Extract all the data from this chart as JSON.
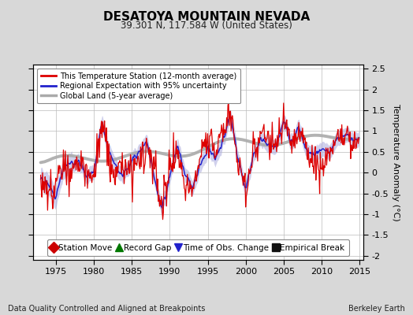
{
  "title": "DESATOYA MOUNTAIN NEVADA",
  "subtitle": "39.301 N, 117.584 W (United States)",
  "ylabel": "Temperature Anomaly (°C)",
  "footer_left": "Data Quality Controlled and Aligned at Breakpoints",
  "footer_right": "Berkeley Earth",
  "xlim": [
    1972.0,
    2015.5
  ],
  "ylim": [
    -2.1,
    2.6
  ],
  "yticks": [
    -2,
    -1.5,
    -1,
    -0.5,
    0,
    0.5,
    1,
    1.5,
    2,
    2.5
  ],
  "xticks": [
    1975,
    1980,
    1985,
    1990,
    1995,
    2000,
    2005,
    2010,
    2015
  ],
  "bg_color": "#d8d8d8",
  "plot_bg_color": "#ffffff",
  "grid_color": "#bbbbbb",
  "station_color": "#dd0000",
  "regional_color": "#2222cc",
  "regional_fill_color": "#aaaadd",
  "global_color": "#aaaaaa",
  "legend_items": [
    "This Temperature Station (12-month average)",
    "Regional Expectation with 95% uncertainty",
    "Global Land (5-year average)"
  ],
  "bottom_legend": [
    {
      "marker": "D",
      "color": "#cc0000",
      "label": "Station Move"
    },
    {
      "marker": "^",
      "color": "#007700",
      "label": "Record Gap"
    },
    {
      "marker": "v",
      "color": "#2222cc",
      "label": "Time of Obs. Change"
    },
    {
      "marker": "s",
      "color": "#111111",
      "label": "Empirical Break"
    }
  ]
}
